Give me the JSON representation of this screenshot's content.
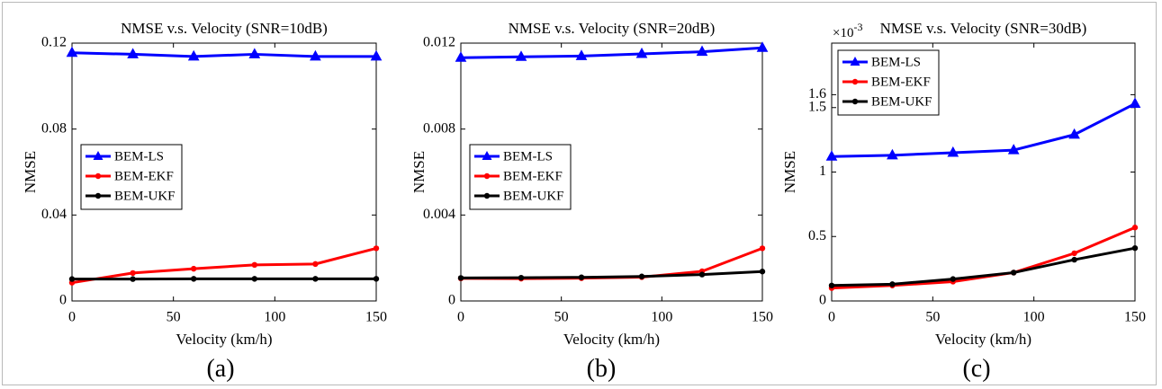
{
  "panels": [
    {
      "label": "(a)",
      "chart_data": {
        "type": "line",
        "title": "NMSE v.s. Velocity (SNR=10dB)",
        "xlabel": "Velocity (km/h)",
        "ylabel": "NMSE",
        "xlim": [
          0,
          150
        ],
        "ylim": [
          0,
          0.12
        ],
        "xticks": [
          0,
          50,
          100,
          150
        ],
        "xtick_labels": [
          "0",
          "50",
          "100",
          "150"
        ],
        "yticks": [
          0,
          0.04,
          0.08,
          0.12
        ],
        "ytick_labels": [
          "0",
          "0.04",
          "0.08",
          "0.12"
        ],
        "exponent_label": "",
        "grid": false,
        "legend": "middle-left",
        "x": [
          0,
          30,
          60,
          90,
          120,
          150
        ],
        "series": [
          {
            "name": "BEM-LS",
            "color": "#0000ff",
            "marker": "triangle",
            "values": [
              0.1155,
              0.1148,
              0.1138,
              0.1148,
              0.1138,
              0.1138
            ]
          },
          {
            "name": "BEM-EKF",
            "color": "#ff0000",
            "marker": "circle",
            "values": [
              0.0085,
              0.013,
              0.015,
              0.0168,
              0.0172,
              0.0245
            ]
          },
          {
            "name": "BEM-UKF",
            "color": "#000000",
            "marker": "circle",
            "values": [
              0.0102,
              0.0102,
              0.0103,
              0.0103,
              0.0103,
              0.0103
            ]
          }
        ]
      }
    },
    {
      "label": "(b)",
      "chart_data": {
        "type": "line",
        "title": "NMSE v.s. Velocity (SNR=20dB)",
        "xlabel": "Velocity (km/h)",
        "ylabel": "NMSE",
        "xlim": [
          0,
          150
        ],
        "ylim": [
          0,
          0.012
        ],
        "xticks": [
          0,
          50,
          100,
          150
        ],
        "xtick_labels": [
          "0",
          "50",
          "100",
          "150"
        ],
        "yticks": [
          0,
          0.004,
          0.008,
          0.012
        ],
        "ytick_labels": [
          "0",
          "0.004",
          "0.008",
          "0.012"
        ],
        "exponent_label": "",
        "grid": false,
        "legend": "middle-left",
        "x": [
          0,
          30,
          60,
          90,
          120,
          150
        ],
        "series": [
          {
            "name": "BEM-LS",
            "color": "#0000ff",
            "marker": "triangle",
            "values": [
              0.01132,
              0.01136,
              0.0114,
              0.0115,
              0.0116,
              0.01178
            ]
          },
          {
            "name": "BEM-EKF",
            "color": "#ff0000",
            "marker": "circle",
            "values": [
              0.00105,
              0.00104,
              0.00106,
              0.00111,
              0.00138,
              0.00245
            ]
          },
          {
            "name": "BEM-UKF",
            "color": "#000000",
            "marker": "circle",
            "values": [
              0.00107,
              0.00108,
              0.0011,
              0.00114,
              0.00123,
              0.00137
            ]
          }
        ]
      }
    },
    {
      "label": "(c)",
      "chart_data": {
        "type": "line",
        "title": "NMSE v.s. Velocity (SNR=30dB)",
        "xlabel": "Velocity (km/h)",
        "ylabel": "NMSE",
        "xlim": [
          0,
          150
        ],
        "ylim": [
          0,
          2.0
        ],
        "xticks": [
          0,
          50,
          100,
          150
        ],
        "xtick_labels": [
          "0",
          "50",
          "100",
          "150"
        ],
        "yticks": [
          0,
          0.5,
          1,
          1.5,
          1.6
        ],
        "ytick_labels": [
          "0",
          "0.5",
          "1",
          "1.5",
          "1.6"
        ],
        "exponent_label": "×10",
        "exponent_power": "-3",
        "grid": false,
        "legend": "top-left",
        "x": [
          0,
          30,
          60,
          90,
          120,
          150
        ],
        "series": [
          {
            "name": "BEM-LS",
            "color": "#0000ff",
            "marker": "triangle",
            "values": [
              1.12,
              1.13,
              1.15,
              1.17,
              1.29,
              1.53
            ]
          },
          {
            "name": "BEM-EKF",
            "color": "#ff0000",
            "marker": "circle",
            "values": [
              0.1,
              0.12,
              0.15,
              0.22,
              0.37,
              0.57
            ]
          },
          {
            "name": "BEM-UKF",
            "color": "#000000",
            "marker": "circle",
            "values": [
              0.12,
              0.13,
              0.17,
              0.22,
              0.32,
              0.41
            ]
          }
        ]
      }
    }
  ]
}
